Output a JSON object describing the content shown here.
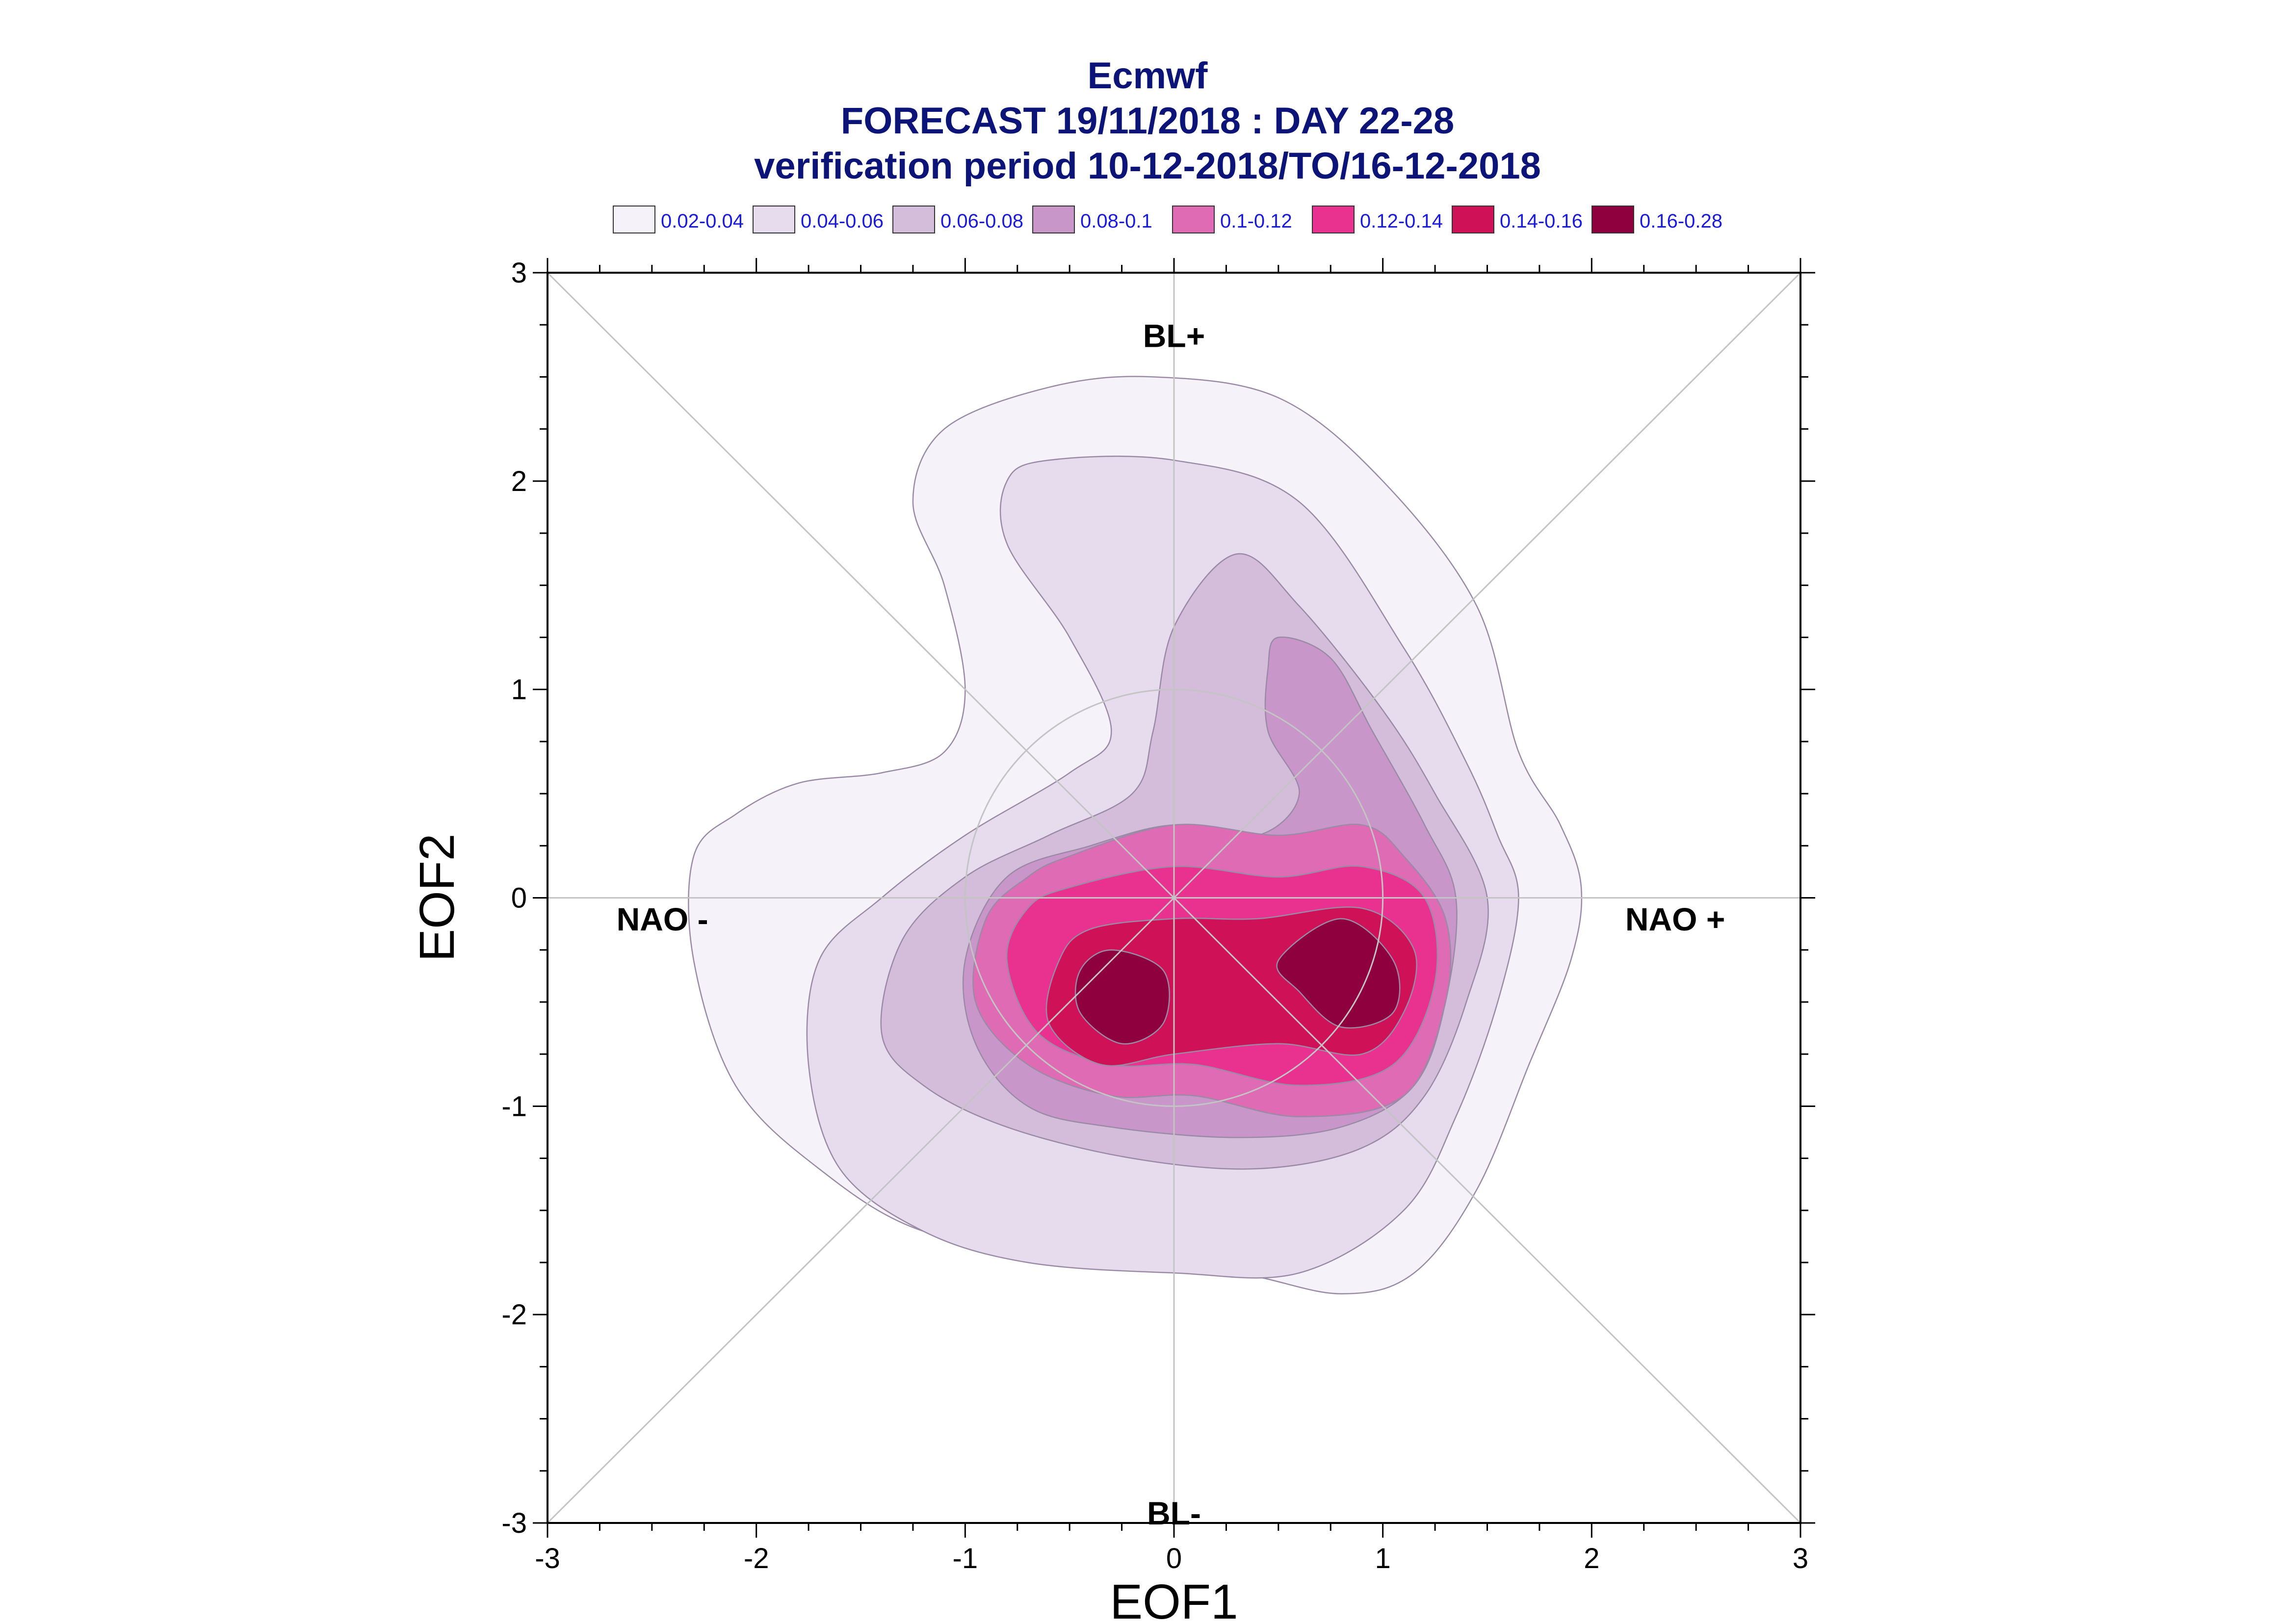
{
  "chart_data": {
    "type": "contour",
    "title": "Ecmwf",
    "subtitle": "FORECAST 19/11/2018 : DAY 22-28",
    "period": "verification period 10-12-2018/TO/16-12-2018",
    "xlabel": "EOF1",
    "ylabel": "EOF2",
    "xlim": [
      -3,
      3
    ],
    "ylim": [
      -3,
      3
    ],
    "xticks": [
      "-3",
      "-2",
      "-1",
      "0",
      "1",
      "2",
      "3"
    ],
    "yticks": [
      "-3",
      "-2",
      "-1",
      "0",
      "1",
      "2",
      "3"
    ],
    "regime_labels": [
      {
        "text": "BL+",
        "x": 0.0,
        "y": 2.7
      },
      {
        "text": "NAO -",
        "x": -2.45,
        "y": -0.1
      },
      {
        "text": "NAO +",
        "x": 2.4,
        "y": -0.1
      },
      {
        "text": "BL-",
        "x": 0.0,
        "y": -2.95
      }
    ],
    "reference_circle": {
      "center": [
        0,
        0
      ],
      "radius": 1
    },
    "legend": [
      {
        "label": "0.02-0.04",
        "color": "#f5f2f9"
      },
      {
        "label": "0.04-0.06",
        "color": "#e6dcee"
      },
      {
        "label": "0.06-0.08",
        "color": "#d3bdda"
      },
      {
        "label": "0.08-0.1",
        "color": "#c896c9"
      },
      {
        "label": "0.1-0.12",
        "color": "#df6bb4"
      },
      {
        "label": "0.12-0.14",
        "color": "#e9318f"
      },
      {
        "label": "0.14-0.16",
        "color": "#cf1258"
      },
      {
        "label": "0.16-0.28",
        "color": "#8f003e"
      }
    ],
    "levels": [
      {
        "range": "0.02-0.04",
        "contours": [
          [
            [
              -0.1,
              2.5
            ],
            [
              0.5,
              2.4
            ],
            [
              1.0,
              2.0
            ],
            [
              1.45,
              1.4
            ],
            [
              1.65,
              0.7
            ],
            [
              1.85,
              0.35
            ],
            [
              1.95,
              0.05
            ],
            [
              1.9,
              -0.3
            ],
            [
              1.7,
              -0.8
            ],
            [
              1.45,
              -1.4
            ],
            [
              1.15,
              -1.8
            ],
            [
              0.8,
              -1.9
            ],
            [
              0.3,
              -1.8
            ],
            [
              -0.5,
              -1.7
            ],
            [
              -1.2,
              -1.6
            ],
            [
              -1.7,
              -1.3
            ],
            [
              -2.1,
              -0.9
            ],
            [
              -2.3,
              -0.3
            ],
            [
              -2.3,
              0.2
            ],
            [
              -2.1,
              0.4
            ],
            [
              -1.8,
              0.55
            ],
            [
              -1.4,
              0.6
            ],
            [
              -1.1,
              0.7
            ],
            [
              -1.0,
              1.0
            ],
            [
              -1.1,
              1.5
            ],
            [
              -1.25,
              1.9
            ],
            [
              -1.1,
              2.25
            ],
            [
              -0.6,
              2.45
            ]
          ]
        ]
      },
      {
        "range": "0.04-0.06",
        "contours": [
          [
            [
              -0.6,
              2.1
            ],
            [
              0.0,
              2.1
            ],
            [
              0.6,
              1.9
            ],
            [
              1.1,
              1.2
            ],
            [
              1.4,
              0.65
            ],
            [
              1.55,
              0.3
            ],
            [
              1.65,
              0.0
            ],
            [
              1.55,
              -0.5
            ],
            [
              1.35,
              -1.05
            ],
            [
              1.1,
              -1.5
            ],
            [
              0.6,
              -1.8
            ],
            [
              0.0,
              -1.8
            ],
            [
              -0.7,
              -1.75
            ],
            [
              -1.2,
              -1.6
            ],
            [
              -1.6,
              -1.3
            ],
            [
              -1.75,
              -0.8
            ],
            [
              -1.7,
              -0.3
            ],
            [
              -1.4,
              0.0
            ],
            [
              -1.0,
              0.3
            ],
            [
              -0.5,
              0.6
            ],
            [
              -0.3,
              0.8
            ],
            [
              -0.5,
              1.25
            ],
            [
              -0.8,
              1.7
            ],
            [
              -0.8,
              2.0
            ]
          ]
        ]
      },
      {
        "range": "0.06-0.08",
        "contours": [
          [
            [
              0.3,
              1.65
            ],
            [
              0.6,
              1.4
            ],
            [
              1.0,
              0.9
            ],
            [
              1.25,
              0.5
            ],
            [
              1.5,
              0.0
            ],
            [
              1.4,
              -0.5
            ],
            [
              1.2,
              -0.95
            ],
            [
              0.9,
              -1.2
            ],
            [
              0.4,
              -1.3
            ],
            [
              -0.2,
              -1.25
            ],
            [
              -0.8,
              -1.1
            ],
            [
              -1.2,
              -0.9
            ],
            [
              -1.4,
              -0.65
            ],
            [
              -1.3,
              -0.2
            ],
            [
              -1.0,
              0.1
            ],
            [
              -0.6,
              0.3
            ],
            [
              -0.2,
              0.5
            ],
            [
              -0.1,
              0.8
            ],
            [
              0.0,
              1.3
            ]
          ]
        ]
      },
      {
        "range": "0.08-0.1",
        "contours": [
          [
            [
              0.5,
              1.25
            ],
            [
              0.75,
              1.15
            ],
            [
              0.95,
              0.8
            ],
            [
              1.2,
              0.35
            ],
            [
              1.35,
              0.0
            ],
            [
              1.3,
              -0.5
            ],
            [
              1.15,
              -0.9
            ],
            [
              0.8,
              -1.1
            ],
            [
              0.3,
              -1.15
            ],
            [
              -0.3,
              -1.1
            ],
            [
              -0.7,
              -1.0
            ],
            [
              -0.95,
              -0.7
            ],
            [
              -1.0,
              -0.3
            ],
            [
              -0.8,
              0.1
            ],
            [
              -0.4,
              0.25
            ],
            [
              0.0,
              0.35
            ],
            [
              0.4,
              0.3
            ],
            [
              0.6,
              0.5
            ],
            [
              0.45,
              0.8
            ],
            [
              0.45,
              1.1
            ]
          ]
        ]
      },
      {
        "range": "0.1-0.12",
        "contours": [
          [
            [
              -0.5,
              0.2
            ],
            [
              0.0,
              0.35
            ],
            [
              0.5,
              0.3
            ],
            [
              0.9,
              0.35
            ],
            [
              1.1,
              0.2
            ],
            [
              1.3,
              -0.1
            ],
            [
              1.3,
              -0.5
            ],
            [
              1.1,
              -0.95
            ],
            [
              0.6,
              -1.05
            ],
            [
              0.1,
              -0.95
            ],
            [
              -0.3,
              -0.95
            ],
            [
              -0.7,
              -0.8
            ],
            [
              -0.95,
              -0.5
            ],
            [
              -0.9,
              -0.1
            ],
            [
              -0.7,
              0.1
            ]
          ]
        ]
      },
      {
        "range": "0.12-0.14",
        "contours": [
          [
            [
              -0.5,
              0.05
            ],
            [
              0.0,
              0.15
            ],
            [
              0.5,
              0.1
            ],
            [
              0.9,
              0.15
            ],
            [
              1.2,
              0.0
            ],
            [
              1.25,
              -0.4
            ],
            [
              1.05,
              -0.8
            ],
            [
              0.6,
              -0.9
            ],
            [
              0.1,
              -0.8
            ],
            [
              -0.3,
              -0.8
            ],
            [
              -0.65,
              -0.65
            ],
            [
              -0.8,
              -0.3
            ],
            [
              -0.7,
              -0.05
            ]
          ]
        ]
      },
      {
        "range": "0.14-0.16",
        "contours": [
          [
            [
              -0.4,
              -0.15
            ],
            [
              0.0,
              -0.1
            ],
            [
              0.4,
              -0.1
            ],
            [
              0.9,
              -0.05
            ],
            [
              1.15,
              -0.25
            ],
            [
              1.1,
              -0.55
            ],
            [
              0.9,
              -0.75
            ],
            [
              0.5,
              -0.7
            ],
            [
              0.0,
              -0.75
            ],
            [
              -0.35,
              -0.8
            ],
            [
              -0.6,
              -0.6
            ],
            [
              -0.55,
              -0.3
            ]
          ]
        ]
      },
      {
        "range": "0.16-0.28",
        "contours": [
          [
            [
              -0.3,
              -0.25
            ],
            [
              -0.05,
              -0.35
            ],
            [
              -0.05,
              -0.6
            ],
            [
              -0.25,
              -0.7
            ],
            [
              -0.45,
              -0.55
            ],
            [
              -0.45,
              -0.35
            ]
          ],
          [
            [
              0.8,
              -0.1
            ],
            [
              1.05,
              -0.3
            ],
            [
              1.05,
              -0.55
            ],
            [
              0.8,
              -0.62
            ],
            [
              0.6,
              -0.45
            ],
            [
              0.5,
              -0.3
            ]
          ]
        ]
      }
    ]
  }
}
